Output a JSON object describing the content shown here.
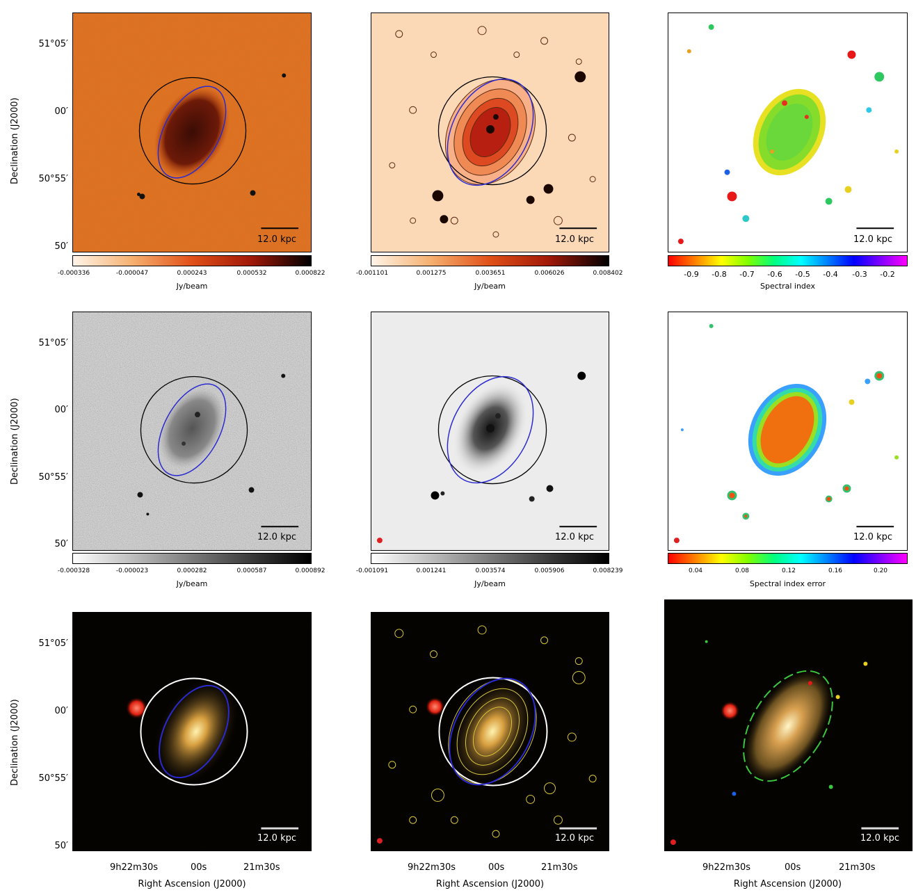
{
  "axes": {
    "ylabel": "Declination (J2000)",
    "xlabel": "Right Ascension (J2000)",
    "yticks": [
      "51°05′",
      "00′",
      "50°55′",
      "50′"
    ],
    "xticks": [
      "9h22m30s",
      "00s",
      "21m30s"
    ]
  },
  "scalebar": {
    "label": "12.0 kpc"
  },
  "row1": {
    "cbar1": {
      "ticks": [
        "-0.000336",
        "-0.000047",
        "0.000243",
        "0.000532",
        "0.000822"
      ],
      "label": "Jy/beam"
    },
    "cbar2": {
      "ticks": [
        "-0.001101",
        "0.001275",
        "0.003651",
        "0.006026",
        "0.008402"
      ],
      "label": "Jy/beam"
    },
    "cbar3": {
      "ticks": [
        "-0.9",
        "-0.8",
        "-0.7",
        "-0.6",
        "-0.5",
        "-0.4",
        "-0.3",
        "-0.2"
      ],
      "label": "Spectral index"
    }
  },
  "row2": {
    "cbar1": {
      "ticks": [
        "-0.000328",
        "-0.000023",
        "0.000282",
        "0.000587",
        "0.000892"
      ],
      "label": "Jy/beam"
    },
    "cbar2": {
      "ticks": [
        "-0.001091",
        "0.001241",
        "0.003574",
        "0.005906",
        "0.008239"
      ],
      "label": "Jy/beam"
    },
    "cbar3": {
      "ticks": [
        "0.04",
        "0.08",
        "0.12",
        "0.16",
        "0.20"
      ],
      "label": "Spectral index error"
    }
  },
  "colors": {
    "ellipse": "#2a2ad0",
    "circle_dark": "#000000",
    "circle_light": "#ffffff",
    "contour_optical": "#d8c83a"
  }
}
